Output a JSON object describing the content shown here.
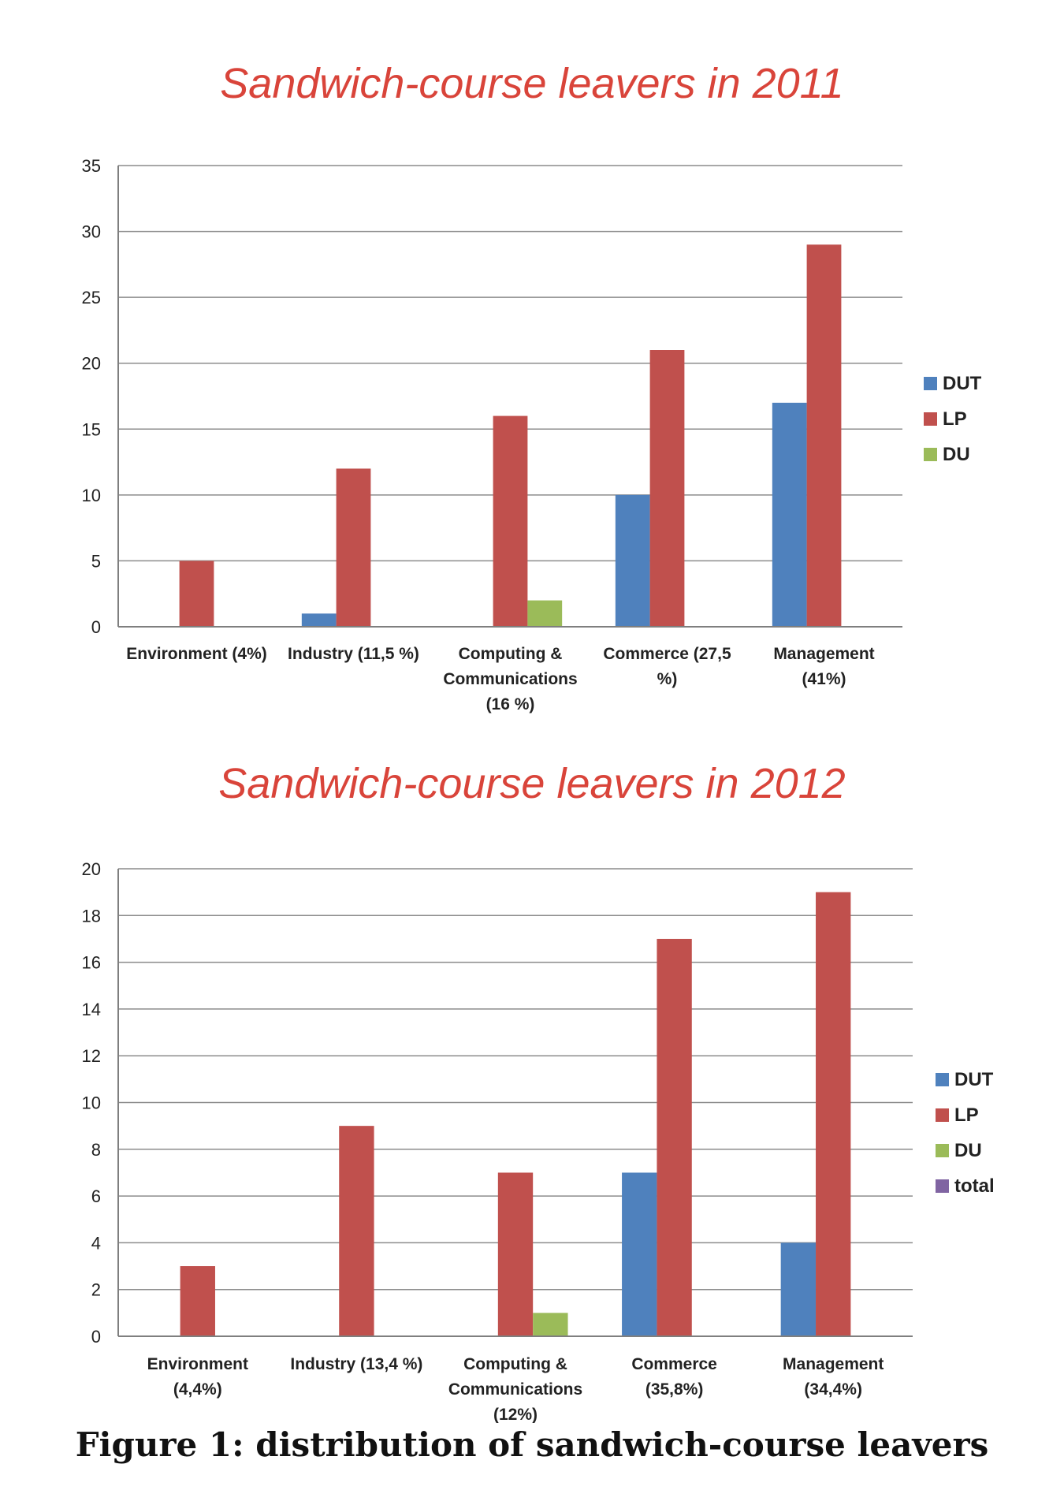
{
  "caption": "Figure 1: distribution of sandwich-course leavers",
  "colors": {
    "DUT": "#4f81bd",
    "LP": "#c0504d",
    "DU": "#9bbb59",
    "total": "#8064a2"
  },
  "chart_data": [
    {
      "type": "bar",
      "title": "Sandwich-course leavers in 2011",
      "categories": [
        [
          "Environment (4%)"
        ],
        [
          "Industry  (11,5 %)"
        ],
        [
          "Computing &",
          "Communications",
          "(16 %)"
        ],
        [
          "Commerce  (27,5",
          "%)"
        ],
        [
          "Management",
          "(41%)"
        ]
      ],
      "yticks": [
        "0",
        "5",
        "10",
        "15",
        "20",
        "25",
        "30",
        "35"
      ],
      "ylim": [
        0,
        35
      ],
      "grid": true,
      "legend_position": "right",
      "series": [
        {
          "name": "DUT",
          "values": [
            0,
            1,
            0,
            10,
            17
          ]
        },
        {
          "name": "LP",
          "values": [
            5,
            12,
            16,
            21,
            29
          ]
        },
        {
          "name": "DU",
          "values": [
            0,
            0,
            2,
            0,
            0
          ]
        }
      ]
    },
    {
      "type": "bar",
      "title": "Sandwich-course leavers in 2012",
      "categories": [
        [
          "Environment",
          "(4,4%)"
        ],
        [
          "Industry  (13,4 %)"
        ],
        [
          "Computing &",
          "Communications",
          "(12%)"
        ],
        [
          "Commerce",
          "(35,8%)"
        ],
        [
          "Management",
          "(34,4%)"
        ]
      ],
      "yticks": [
        "0",
        "2",
        "4",
        "6",
        "8",
        "10",
        "12",
        "14",
        "16",
        "18",
        "20"
      ],
      "ylim": [
        0,
        20
      ],
      "grid": true,
      "legend_position": "right",
      "series": [
        {
          "name": "DUT",
          "values": [
            0,
            0,
            0,
            7,
            4
          ]
        },
        {
          "name": "LP",
          "values": [
            3,
            9,
            7,
            17,
            19
          ]
        },
        {
          "name": "DU",
          "values": [
            0,
            0,
            1,
            0,
            0
          ]
        },
        {
          "name": "total",
          "values": [
            0,
            0,
            0,
            0,
            0
          ]
        }
      ]
    }
  ]
}
